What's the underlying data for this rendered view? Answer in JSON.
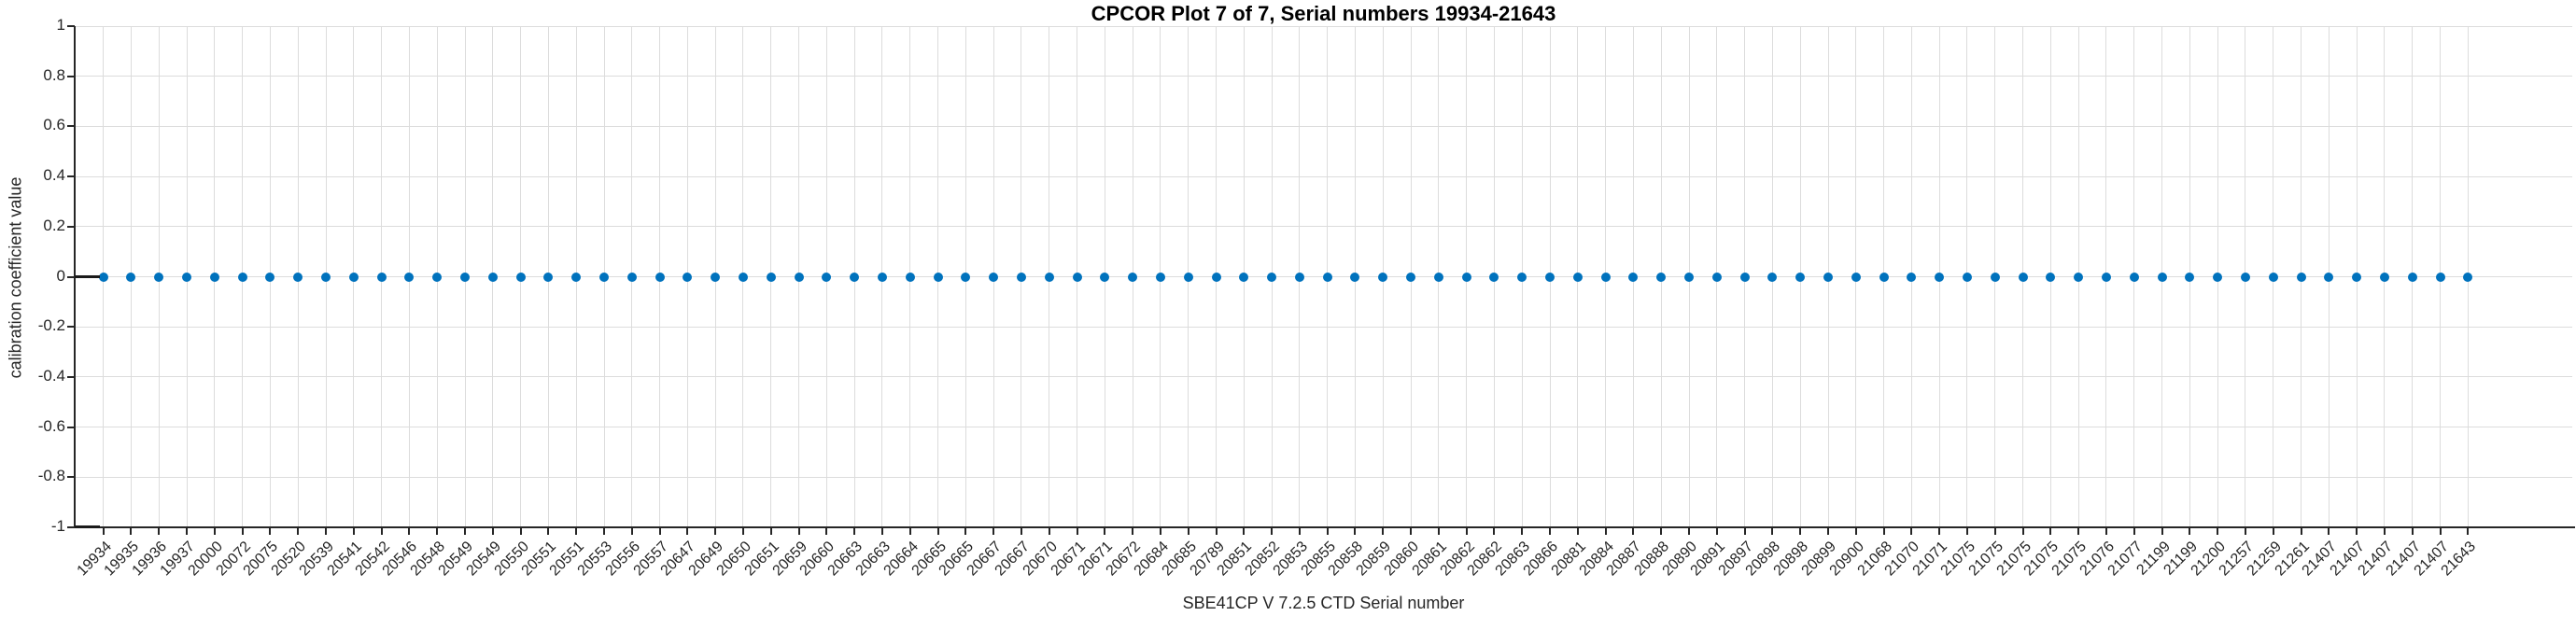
{
  "title": "CPCOR Plot 7 of 7, Serial numbers 19934-21643",
  "chart_data": {
    "type": "scatter",
    "title": "CPCOR Plot 7 of 7, Serial numbers 19934-21643",
    "xlabel": "SBE41CP V 7.2.5 CTD Serial number",
    "ylabel": "calibration coefficient value",
    "ylim": [
      -1,
      1
    ],
    "grid": true,
    "legend": "none",
    "marker": "filled-circle",
    "marker_color": "#0072BD",
    "y_tick_labels": [
      "1",
      "0.8",
      "0.6",
      "0.4",
      "0.2",
      "0",
      "-0.2",
      "-0.4",
      "-0.6",
      "-0.8",
      "-1"
    ],
    "y_tick_values": [
      1,
      0.8,
      0.6,
      0.4,
      0.2,
      0,
      -0.2,
      -0.4,
      -0.6,
      -0.8,
      -1
    ],
    "categories": [
      "19934",
      "19935",
      "19936",
      "19937",
      "20000",
      "20072",
      "20075",
      "20520",
      "20539",
      "20541",
      "20542",
      "20546",
      "20548",
      "20549",
      "20549",
      "20550",
      "20551",
      "20551",
      "20553",
      "20556",
      "20557",
      "20647",
      "20649",
      "20650",
      "20651",
      "20659",
      "20660",
      "20663",
      "20663",
      "20664",
      "20665",
      "20665",
      "20667",
      "20667",
      "20670",
      "20671",
      "20671",
      "20672",
      "20684",
      "20685",
      "20789",
      "20851",
      "20852",
      "20853",
      "20855",
      "20858",
      "20859",
      "20860",
      "20861",
      "20862",
      "20862",
      "20863",
      "20866",
      "20881",
      "20884",
      "20887",
      "20888",
      "20890",
      "20891",
      "20897",
      "20898",
      "20898",
      "20899",
      "20900",
      "21068",
      "21070",
      "21071",
      "21075",
      "21075",
      "21075",
      "21075",
      "21075",
      "21076",
      "21077",
      "21199",
      "21199",
      "21200",
      "21257",
      "21259",
      "21261",
      "21407",
      "21407",
      "21407",
      "21407",
      "21407",
      "21643"
    ],
    "values": [
      0,
      0,
      0,
      0,
      0,
      0,
      0,
      0,
      0,
      0,
      0,
      0,
      0,
      0,
      0,
      0,
      0,
      0,
      0,
      0,
      0,
      0,
      0,
      0,
      0,
      0,
      0,
      0,
      0,
      0,
      0,
      0,
      0,
      0,
      0,
      0,
      0,
      0,
      0,
      0,
      0,
      0,
      0,
      0,
      0,
      0,
      0,
      0,
      0,
      0,
      0,
      0,
      0,
      0,
      0,
      0,
      0,
      0,
      0,
      0,
      0,
      0,
      0,
      0,
      0,
      0,
      0,
      0,
      0,
      0,
      0,
      0,
      0,
      0,
      0,
      0,
      0,
      0,
      0,
      0,
      0,
      0,
      0,
      0,
      0,
      0
    ]
  },
  "colors": {
    "marker": "#0072BD",
    "grid": "#dcdcdc",
    "axis": "#262626",
    "title_text": "#000000",
    "tick_text": "#262626",
    "background": "#ffffff"
  }
}
